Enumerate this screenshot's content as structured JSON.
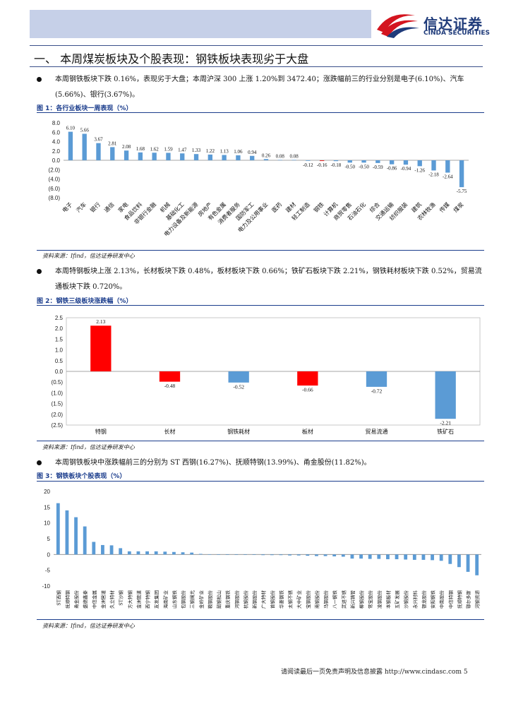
{
  "header": {
    "logo_cn": "信达证券",
    "logo_en": "CINDA SECURITIES",
    "colors": {
      "brand_red": "#d4151f",
      "brand_blue": "#1f3b7a",
      "band": "#c6d0e8"
    }
  },
  "section_title": "一、  本周煤炭板块及个股表现：钢铁板块表现劣于大盘",
  "bullets": [
    "本周钢铁板块下跌 0.16%，表现劣于大盘；本周沪深 300 上涨 1.20%到 3472.40；涨跌幅前三的行业分别是电子(6.10%)、汽车(5.66%)、银行(3.67%)。",
    "本周特钢板块上涨 2.13%，长材板块下跌 0.48%，板材板块下跌 0.66%；铁矿石板块下跌 2.21%，钢铁耗材板块下跌 0.52%，贸易流通板块下跌 0.720%。",
    "本周钢铁板块中涨跌幅前三的分别为 ST 西钢(16.27%)、抚顺特钢(13.99%)、甬金股份(11.82%)。"
  ],
  "figure_titles": [
    "图 1：各行业板块一周表现（%）",
    "图 2：钢铁三级板块涨跌幅（%）",
    "图 3：钢铁板块个股表现（%）"
  ],
  "source_note": "资料来源：Ifind，信达证券研发中心",
  "footer": "请阅读最后一页免责声明及信息披露 http://www.cindasc.com  5",
  "chart_data": [
    {
      "type": "bar",
      "title": "图 1：各行业板块一周表现（%）",
      "categories": [
        "电子",
        "汽车",
        "银行",
        "通信",
        "家电",
        "食品饮料",
        "非银行金融",
        "机械",
        "基础化工",
        "电力设备及新能源",
        "房地产",
        "有色金属",
        "消费者服务",
        "国防军工",
        "电力及公用事业",
        "医药",
        "建材",
        "轻工制造",
        "钢铁",
        "计算机",
        "商贸零售",
        "石油石化",
        "综合",
        "交通运输",
        "纺织服装",
        "建筑",
        "农林牧渔",
        "传媒",
        "煤炭"
      ],
      "values": [
        6.1,
        5.66,
        3.67,
        2.81,
        2.08,
        1.68,
        1.62,
        1.59,
        1.47,
        1.33,
        1.22,
        1.13,
        1.06,
        0.94,
        0.26,
        0.08,
        0.08,
        -0.12,
        -0.16,
        -0.18,
        -0.5,
        -0.5,
        -0.59,
        -0.86,
        -0.94,
        -1.26,
        -2.18,
        -2.64,
        -5.75
      ],
      "labels": [
        "6.10",
        "5.66",
        "3.67",
        "2.81",
        "2.08",
        "1.68",
        "1.62",
        "1.59",
        "1.47",
        "1.33",
        "1.22",
        "1.13",
        "1.06",
        "0.94",
        "0.26",
        "0.08",
        "0.08",
        "-0.12",
        "-0.16",
        "-0.18",
        "-0.50",
        "-0.50",
        "-0.59",
        "-0.86",
        "-0.94",
        "-1.26",
        "-2.18",
        "-2.64",
        "-5.75"
      ],
      "highlight_index": 18,
      "ylim": [
        -8,
        8
      ],
      "ticks": [
        8,
        6,
        4,
        2,
        0,
        -2,
        -4,
        -6,
        -8
      ],
      "tick_labels": [
        "8.0",
        "6.0",
        "4.0",
        "2.0",
        "0.0",
        "(2.0)",
        "(4.0)",
        "(6.0)",
        "(8.0)"
      ],
      "colors": {
        "bar": "#5b9bd5",
        "highlight": "#e32b2b"
      }
    },
    {
      "type": "bar",
      "title": "图 2：钢铁三级板块涨跌幅（%）",
      "categories": [
        "特钢",
        "长材",
        "钢铁耗材",
        "板材",
        "贸易流通",
        "铁矿石"
      ],
      "values": [
        2.13,
        -0.48,
        -0.52,
        -0.66,
        -0.72,
        -2.21
      ],
      "labels": [
        "2.13",
        "-0.48",
        "-0.52",
        "-0.66",
        "-0.72",
        "-2.21"
      ],
      "bar_colors": [
        "#ff0000",
        "#ff0000",
        "#5b9bd5",
        "#ff0000",
        "#5b9bd5",
        "#5b9bd5"
      ],
      "ylim": [
        -2.5,
        2.5
      ],
      "ticks": [
        2.5,
        2.0,
        1.5,
        1.0,
        0.5,
        0.0,
        -0.5,
        -1.0,
        -1.5,
        -2.0,
        -2.5
      ],
      "tick_labels": [
        "2.5",
        "2.0",
        "1.5",
        "1.0",
        "0.5",
        "0.0",
        "(0.5)",
        "(1.0)",
        "(1.5)",
        "(2.0)",
        "(2.5)"
      ]
    },
    {
      "type": "bar",
      "title": "图 3：钢铁板块个股表现（%）",
      "categories": [
        "ST西钢",
        "抚顺特钢",
        "甬金股份",
        "盛德鑫泰",
        "中信金属",
        "金洲管道",
        "久立特材",
        "ST沙钢",
        "方大特钢",
        "金洲管道",
        "西宁特钢",
        "友发集团",
        "海南矿业",
        "山东钢铁",
        "包钢股份",
        "三钢闽光",
        "金岭矿业",
        "鞍钢股份",
        "韶钢松山",
        "重庆钢铁",
        "河钢股份",
        "杭钢股份",
        "新钢股份",
        "广大特材",
        "首钢股份",
        "华菱钢铁",
        "太钢不锈",
        "大中矿业",
        "宝钢股份",
        "南钢股份",
        "马钢股份",
        "八一钢铁",
        "武进不锈",
        "新兴铸管",
        "柳钢股份",
        "常宝股份",
        "凌钢股份",
        "本钢板材",
        "五矿发展",
        "沙钢股份",
        "永兴材料",
        "银龙股份",
        "安阳钢铁",
        "中南股份",
        "中信特钢",
        "抚顺特钢",
        "鄂尔多斯",
        "河钢资源"
      ],
      "values": [
        16.27,
        13.99,
        11.82,
        8.9,
        4.0,
        3.0,
        2.9,
        2.0,
        1.0,
        1.0,
        1.0,
        1.0,
        0.9,
        0.8,
        0.7,
        0.6,
        0.2,
        0.05,
        0.02,
        0.0,
        -0.1,
        -0.1,
        -0.1,
        -0.2,
        -0.2,
        -0.2,
        -0.3,
        -0.3,
        -0.4,
        -0.5,
        -0.5,
        -0.6,
        -0.7,
        -1.3,
        -1.3,
        -1.4,
        -1.4,
        -1.5,
        -1.5,
        -1.6,
        -1.7,
        -1.7,
        -1.8,
        -2.0,
        -3.0,
        -4.0,
        -5.5,
        -6.6
      ],
      "ylim": [
        -10,
        20
      ],
      "ticks": [
        20,
        15,
        10,
        5,
        0,
        -5,
        -10
      ],
      "tick_labels": [
        "20",
        "15",
        "10",
        "5",
        "0",
        "-5",
        "-10"
      ],
      "colors": {
        "bar": "#5b9bd5"
      }
    }
  ]
}
